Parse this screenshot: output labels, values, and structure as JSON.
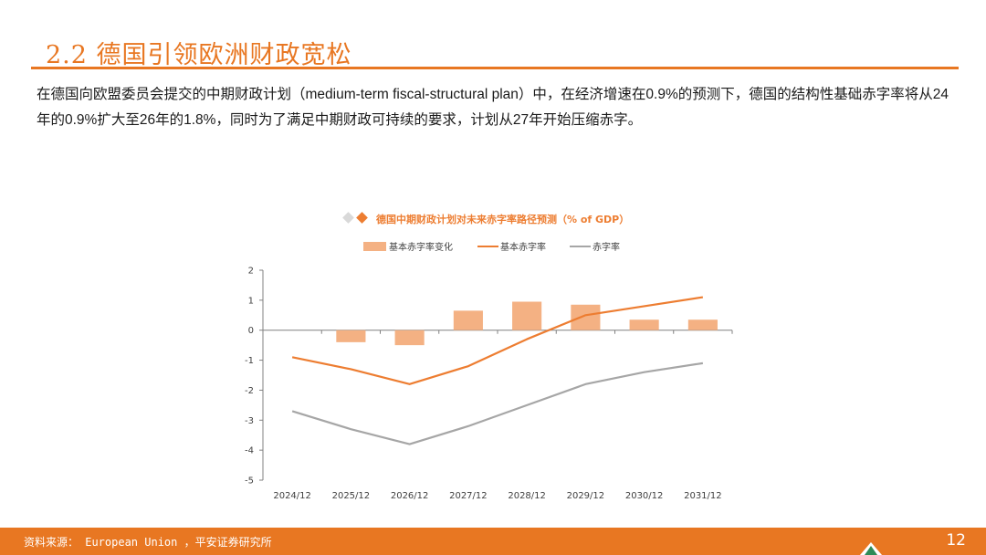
{
  "header": {
    "title": "2.2 德国引领欧洲财政宽松"
  },
  "body": {
    "paragraph": "在德国向欧盟委员会提交的中期财政计划（medium-term fiscal-structural plan）中，在经济增速在0.9%的预测下，德国的结构性基础赤字率将从24年的0.9%扩大至26年的1.8%，同时为了满足中期财政可持续的要求，计划从27年开始压缩赤字。"
  },
  "chart_data": {
    "type": "bar+line",
    "title": "德国中期财政计划对未来赤字率路径预测（% of GDP）",
    "categories": [
      "2024/12",
      "2025/12",
      "2026/12",
      "2027/12",
      "2028/12",
      "2029/12",
      "2030/12",
      "2031/12"
    ],
    "ylim": [
      -5,
      2
    ],
    "yticks": [
      2,
      1,
      0,
      -1,
      -2,
      -3,
      -4,
      -5
    ],
    "series": [
      {
        "name": "基本赤字率变化",
        "kind": "bar",
        "color": "#f4b183",
        "values": [
          null,
          -0.4,
          -0.5,
          0.65,
          0.95,
          0.85,
          0.35,
          0.35
        ]
      },
      {
        "name": "基本赤字率",
        "kind": "line",
        "color": "#ed7d31",
        "values": [
          -0.9,
          -1.3,
          -1.8,
          -1.2,
          -0.3,
          0.5,
          0.8,
          1.1
        ]
      },
      {
        "name": "赤字率",
        "kind": "line",
        "color": "#a6a6a6",
        "values": [
          -2.7,
          -3.3,
          -3.8,
          -3.2,
          -2.5,
          -1.8,
          -1.4,
          -1.1
        ]
      }
    ]
  },
  "footer": {
    "source": "资料来源： European Union ，平安证券研究所",
    "page": "12"
  },
  "colors": {
    "accent": "#e87722"
  }
}
